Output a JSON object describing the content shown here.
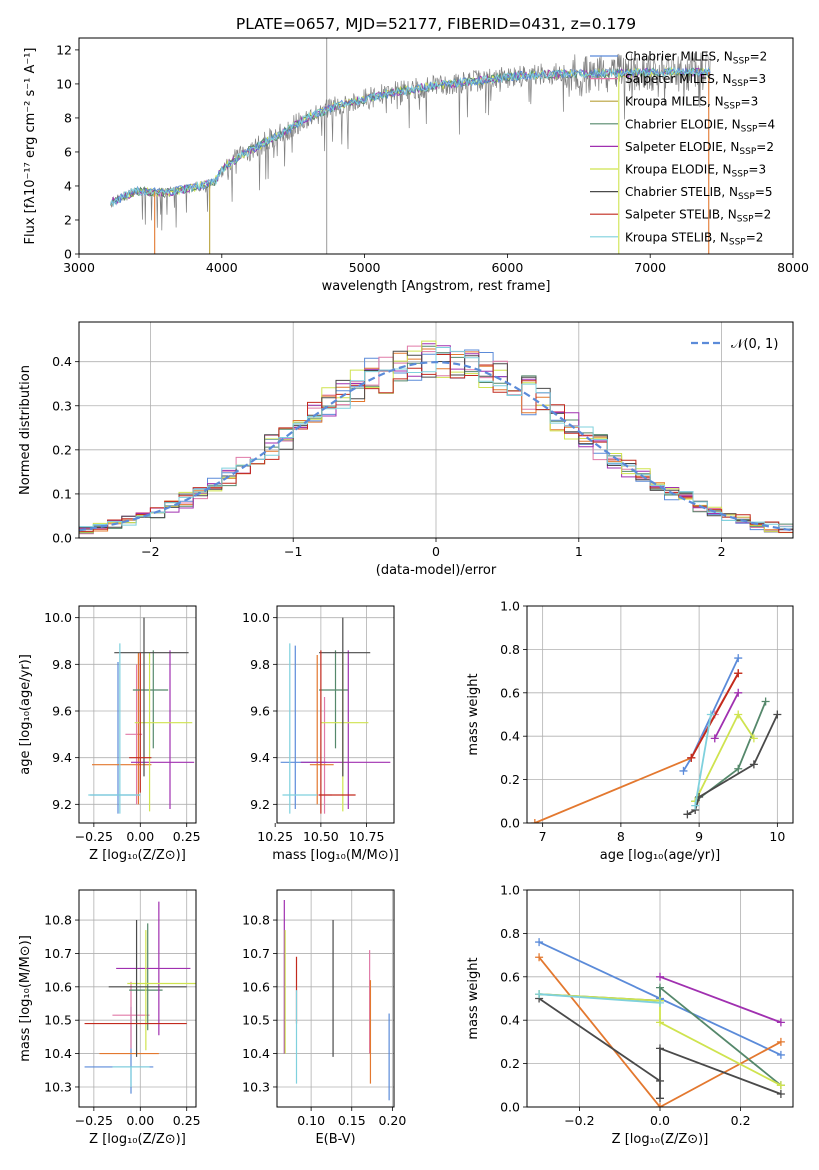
{
  "figure_title": "PLATE=0657, MJD=52177, FIBERID=0431, z=0.179",
  "colors": {
    "chabrier_miles": "#5b8bd9",
    "salpeter_miles": "#e07aa7",
    "kroupa_miles": "#b8a13a",
    "chabrier_elodie": "#55886b",
    "salpeter_elodie": "#a030b0",
    "kroupa_elodie": "#cfe34f",
    "chabrier_stelib": "#4a4a4a",
    "salpeter_stelib": "#c22a1e",
    "kroupa_stelib": "#7fd1dd",
    "orange_model": "#e3782f",
    "data_gray": "#808080",
    "grid": "#b0b0b0",
    "normal_curve": "#5b8bd9"
  },
  "chart_data": [
    {
      "id": "spectrum",
      "type": "line",
      "xlabel": "wavelength [Angstrom, rest frame]",
      "ylabel": "Flux [fλ10⁻¹⁷ erg cm⁻² s⁻¹ A⁻¹]",
      "xlim": [
        3000,
        8000
      ],
      "ylim": [
        0,
        12.7
      ],
      "xticks": [
        "3000",
        "4000",
        "5000",
        "6000",
        "7000",
        "8000"
      ],
      "yticks": [
        "0",
        "2",
        "4",
        "6",
        "8",
        "10",
        "12"
      ],
      "grid": false,
      "legend_position": "top-right",
      "legend": [
        {
          "text": "Chabrier MILES, N",
          "sub": "SSP",
          "tail": "=2",
          "color": "chabrier_miles"
        },
        {
          "text": "Salpeter MILES, N",
          "sub": "SSP",
          "tail": "=3",
          "color": "salpeter_miles"
        },
        {
          "text": "Kroupa MILES, N",
          "sub": "SSP",
          "tail": "=3",
          "color": "kroupa_miles"
        },
        {
          "text": "Chabrier ELODIE, N",
          "sub": "SSP",
          "tail": "=4",
          "color": "chabrier_elodie"
        },
        {
          "text": "Salpeter ELODIE, N",
          "sub": "SSP",
          "tail": "=2",
          "color": "salpeter_elodie"
        },
        {
          "text": "Kroupa ELODIE, N",
          "sub": "SSP",
          "tail": "=3",
          "color": "kroupa_elodie"
        },
        {
          "text": "Chabrier STELIB, N",
          "sub": "SSP",
          "tail": "=5",
          "color": "chabrier_stelib"
        },
        {
          "text": "Salpeter STELIB, N",
          "sub": "SSP",
          "tail": "=2",
          "color": "salpeter_stelib"
        },
        {
          "text": "Kroupa STELIB, N",
          "sub": "SSP",
          "tail": "=2",
          "color": "kroupa_stelib"
        }
      ],
      "continuum": [
        [
          3220,
          3.0
        ],
        [
          3400,
          3.7
        ],
        [
          3600,
          3.6
        ],
        [
          3800,
          3.9
        ],
        [
          3950,
          4.2
        ],
        [
          4000,
          5.0
        ],
        [
          4200,
          6.1
        ],
        [
          4400,
          7.0
        ],
        [
          4600,
          8.0
        ],
        [
          4800,
          8.7
        ],
        [
          5000,
          9.1
        ],
        [
          5200,
          9.5
        ],
        [
          5500,
          9.9
        ],
        [
          5800,
          10.2
        ],
        [
          6100,
          10.5
        ],
        [
          6400,
          10.6
        ],
        [
          6700,
          10.6
        ],
        [
          7000,
          10.7
        ],
        [
          7400,
          10.7
        ]
      ],
      "drops": [
        {
          "x": 3530,
          "color": "orange_model"
        },
        {
          "x": 3915,
          "color": "kroupa_miles"
        },
        {
          "x": 6780,
          "color": "kroupa_elodie"
        },
        {
          "x": 7410,
          "color": "orange_model"
        }
      ],
      "spikes": [
        4735
      ]
    },
    {
      "id": "residuals",
      "type": "histogram",
      "xlabel": "(data-model)/error",
      "ylabel": "Normed distribution",
      "xlim": [
        -2.5,
        2.5
      ],
      "ylim": [
        0,
        0.49
      ],
      "xticks": [
        -2,
        -1,
        0,
        1,
        2
      ],
      "yticks": [
        0.0,
        0.1,
        0.2,
        0.3,
        0.4
      ],
      "grid": true,
      "legend_position": "top-right",
      "legend_label": "𝒩(0, 1)",
      "bin_width": 0.1,
      "bin_start": -2.5
    },
    {
      "id": "age_vs_Z",
      "type": "errorbar",
      "xlabel": "Z [log₁₀(Z/Z⊙)]",
      "ylabel": "age  [log₁₀(age/yr)]",
      "xlim": [
        -0.33,
        0.3
      ],
      "ylim": [
        9.12,
        10.05
      ],
      "xticks": [
        "−0.25",
        "0.00",
        "0.25"
      ],
      "yticks": [
        "9.2",
        "9.4",
        "9.6",
        "9.8",
        "10.0"
      ],
      "grid": true,
      "points": [
        {
          "color": "chabrier_miles",
          "x": -0.12,
          "xerr": [
            0.15,
            0.12
          ],
          "y": 9.24,
          "yerr": [
            0.08,
            0.57
          ]
        },
        {
          "color": "salpeter_miles",
          "x": -0.02,
          "xerr": [
            0.06,
            0.03
          ],
          "y": 9.5,
          "yerr": [
            0.3,
            0.3
          ]
        },
        {
          "color": "orange_model",
          "x": -0.01,
          "xerr": [
            0.25,
            0.07
          ],
          "y": 9.37,
          "yerr": [
            0.17,
            0.48
          ]
        },
        {
          "color": "chabrier_elodie",
          "x": 0.07,
          "xerr": [
            0.11,
            0.08
          ],
          "y": 9.69,
          "yerr": [
            0.25,
            0.17
          ]
        },
        {
          "color": "salpeter_elodie",
          "x": 0.16,
          "xerr": [
            0.21,
            0.13
          ],
          "y": 9.38,
          "yerr": [
            0.2,
            0.48
          ]
        },
        {
          "color": "kroupa_elodie",
          "x": 0.05,
          "xerr": [
            0.08,
            0.23
          ],
          "y": 9.55,
          "yerr": [
            0.38,
            0.3
          ]
        },
        {
          "color": "chabrier_stelib",
          "x": 0.02,
          "xerr": [
            0.16,
            0.24
          ],
          "y": 9.85,
          "yerr": [
            0.53,
            0.15
          ]
        },
        {
          "color": "salpeter_stelib",
          "x": 0.0,
          "xerr": [
            0.06,
            0.06
          ],
          "y": 9.4,
          "yerr": [
            0.15,
            0.45
          ]
        },
        {
          "color": "kroupa_stelib",
          "x": -0.11,
          "xerr": [
            0.17,
            0.11
          ],
          "y": 9.24,
          "yerr": [
            0.08,
            0.65
          ]
        }
      ]
    },
    {
      "id": "age_vs_mass",
      "type": "errorbar",
      "xlabel": "mass [log₁₀(M/M⊙)]",
      "ylabel": "",
      "xlim": [
        10.26,
        10.9
      ],
      "ylim": [
        9.12,
        10.05
      ],
      "xticks": [
        "10.25",
        "10.50",
        "10.75"
      ],
      "yticks": [
        "9.2",
        "9.4",
        "9.6",
        "9.8",
        "10.0"
      ],
      "grid": true,
      "points": [
        {
          "color": "chabrier_miles",
          "x": 10.36,
          "xerr": [
            0.08,
            0.17
          ],
          "y": 9.38,
          "yerr": [
            0.2,
            0.5
          ]
        },
        {
          "color": "salpeter_miles",
          "x": 10.52,
          "xerr": [
            0.04,
            0.04
          ],
          "y": 9.24,
          "yerr": [
            0.08,
            0.42
          ]
        },
        {
          "color": "orange_model",
          "x": 10.48,
          "xerr": [
            0.04,
            0.09
          ],
          "y": 9.37,
          "yerr": [
            0.17,
            0.47
          ]
        },
        {
          "color": "chabrier_elodie",
          "x": 10.58,
          "xerr": [
            0.09,
            0.07
          ],
          "y": 9.69,
          "yerr": [
            0.25,
            0.17
          ]
        },
        {
          "color": "salpeter_elodie",
          "x": 10.65,
          "xerr": [
            0.26,
            0.23
          ],
          "y": 9.38,
          "yerr": [
            0.2,
            0.48
          ]
        },
        {
          "color": "kroupa_elodie",
          "x": 10.62,
          "xerr": [
            0.12,
            0.14
          ],
          "y": 9.55,
          "yerr": [
            0.38,
            0.3
          ]
        },
        {
          "color": "chabrier_stelib",
          "x": 10.62,
          "xerr": [
            0.13,
            0.15
          ],
          "y": 9.85,
          "yerr": [
            0.53,
            0.15
          ]
        },
        {
          "color": "salpeter_stelib",
          "x": 10.5,
          "xerr": [
            0.01,
            0.19
          ],
          "y": 9.24,
          "yerr": [
            0.08,
            0.62
          ]
        },
        {
          "color": "kroupa_stelib",
          "x": 10.33,
          "xerr": [
            0.04,
            0.15
          ],
          "y": 9.24,
          "yerr": [
            0.08,
            0.65
          ]
        }
      ]
    },
    {
      "id": "weight_vs_age",
      "type": "line",
      "xlabel": "age  [log₁₀(age/yr)]",
      "ylabel": "mass weight",
      "xlim": [
        6.8,
        10.2
      ],
      "ylim": [
        0,
        1.0
      ],
      "xticks": [
        "7",
        "8",
        "9",
        "10"
      ],
      "yticks": [
        "0.0",
        "0.2",
        "0.4",
        "0.6",
        "0.8",
        "1.0"
      ],
      "grid": true,
      "series": [
        {
          "color": "chabrier_miles",
          "x": [
            8.8,
            8.9,
            9.5
          ],
          "y": [
            0.24,
            0.3,
            0.76
          ]
        },
        {
          "color": "salpeter_miles",
          "x": [
            8.9,
            9.2,
            9.5
          ],
          "y": [
            0.3,
            0.5,
            0.69
          ]
        },
        {
          "color": "orange_model",
          "x": [
            6.9,
            8.9,
            9.5
          ],
          "y": [
            0.0,
            0.3,
            0.69
          ]
        },
        {
          "color": "chabrier_elodie",
          "x": [
            8.95,
            9.5,
            9.85
          ],
          "y": [
            0.1,
            0.25,
            0.56
          ]
        },
        {
          "color": "salpeter_elodie",
          "x": [
            9.2,
            9.5
          ],
          "y": [
            0.39,
            0.6
          ]
        },
        {
          "color": "kroupa_elodie",
          "x": [
            8.95,
            9.5,
            9.7
          ],
          "y": [
            0.1,
            0.5,
            0.39
          ]
        },
        {
          "color": "chabrier_stelib",
          "x": [
            8.85,
            8.95,
            9.0,
            9.7,
            10.0
          ],
          "y": [
            0.04,
            0.06,
            0.12,
            0.27,
            0.5
          ]
        },
        {
          "color": "salpeter_stelib",
          "x": [
            8.9,
            9.5
          ],
          "y": [
            0.3,
            0.69
          ]
        },
        {
          "color": "kroupa_stelib",
          "x": [
            8.95,
            9.15
          ],
          "y": [
            0.08,
            0.5
          ]
        }
      ]
    },
    {
      "id": "mass_vs_Z",
      "type": "errorbar",
      "xlabel": "Z [log₁₀(Z/Z⊙)]",
      "ylabel": "mass [log₁₀(M/M⊙)]",
      "xlim": [
        -0.33,
        0.3
      ],
      "ylim": [
        10.24,
        10.89
      ],
      "xticks": [
        "−0.25",
        "0.00",
        "0.25"
      ],
      "yticks": [
        "10.3",
        "10.4",
        "10.5",
        "10.6",
        "10.7",
        "10.8"
      ],
      "grid": true,
      "points": [
        {
          "color": "chabrier_miles",
          "x": -0.05,
          "xerr": [
            0.25,
            0.12
          ],
          "y": 10.36,
          "yerr": [
            0.08,
            0.18
          ]
        },
        {
          "color": "salpeter_miles",
          "x": -0.05,
          "xerr": [
            0.1,
            0.1
          ],
          "y": 10.515,
          "yerr": [
            0.1,
            0.1
          ]
        },
        {
          "color": "orange_model",
          "x": -0.05,
          "xerr": [
            0.17,
            0.15
          ],
          "y": 10.4,
          "yerr": [
            0.0,
            0.0
          ]
        },
        {
          "color": "chabrier_elodie",
          "x": 0.04,
          "xerr": [
            0.1,
            0.08
          ],
          "y": 10.59,
          "yerr": [
            0.12,
            0.2
          ]
        },
        {
          "color": "salpeter_elodie",
          "x": 0.1,
          "xerr": [
            0.23,
            0.17
          ],
          "y": 10.655,
          "yerr": [
            0.2,
            0.2
          ]
        },
        {
          "color": "kroupa_elodie",
          "x": 0.03,
          "xerr": [
            0.1,
            0.27
          ],
          "y": 10.61,
          "yerr": [
            0.2,
            0.16
          ]
        },
        {
          "color": "chabrier_stelib",
          "x": -0.02,
          "xerr": [
            0.15,
            0.27
          ],
          "y": 10.6,
          "yerr": [
            0.21,
            0.2
          ]
        },
        {
          "color": "salpeter_stelib",
          "x": -0.05,
          "xerr": [
            0.25,
            0.3
          ],
          "y": 10.49,
          "yerr": [
            0.0,
            0.0
          ]
        },
        {
          "color": "kroupa_stelib",
          "x": -0.05,
          "xerr": [
            0.1,
            0.1
          ],
          "y": 10.36,
          "yerr": [
            0.06,
            0.0
          ]
        }
      ]
    },
    {
      "id": "mass_vs_ebv",
      "type": "errorbar",
      "xlabel": "E(B-V)",
      "ylabel": "",
      "xlim": [
        0.058,
        0.202
      ],
      "ylim": [
        10.24,
        10.89
      ],
      "xticks": [
        "0.10",
        "0.15",
        "0.20"
      ],
      "yticks": [
        "10.3",
        "10.4",
        "10.5",
        "10.6",
        "10.7",
        "10.8"
      ],
      "grid": true,
      "points": [
        {
          "color": "salpeter_elodie",
          "x": 0.067,
          "y": 10.63,
          "yerr": [
            0.23,
            0.23
          ]
        },
        {
          "color": "kroupa_elodie",
          "x": 0.068,
          "y": 10.58,
          "yerr": [
            0.18,
            0.19
          ]
        },
        {
          "color": "salpeter_stelib",
          "x": 0.082,
          "y": 10.59,
          "yerr": [
            0.1,
            0.1
          ]
        },
        {
          "color": "kroupa_stelib",
          "x": 0.082,
          "y": 10.45,
          "yerr": [
            0.14,
            0.14
          ]
        },
        {
          "color": "chabrier_stelib",
          "x": 0.127,
          "y": 10.6,
          "yerr": [
            0.21,
            0.2
          ]
        },
        {
          "color": "salpeter_miles",
          "x": 0.172,
          "y": 10.6,
          "yerr": [
            0.2,
            0.11
          ]
        },
        {
          "color": "orange_model",
          "x": 0.173,
          "y": 10.46,
          "yerr": [
            0.15,
            0.16
          ]
        },
        {
          "color": "chabrier_miles",
          "x": 0.196,
          "y": 10.39,
          "yerr": [
            0.13,
            0.13
          ]
        }
      ]
    },
    {
      "id": "weight_vs_Z",
      "type": "line",
      "xlabel": "Z [log₁₀(Z/Z⊙)]",
      "ylabel": "mass weight",
      "xlim": [
        -0.33,
        0.33
      ],
      "ylim": [
        0,
        1.0
      ],
      "xticks": [
        "−0.2",
        "0.0",
        "0.2"
      ],
      "yticks": [
        "0.0",
        "0.2",
        "0.4",
        "0.6",
        "0.8",
        "1.0"
      ],
      "grid": true,
      "series": [
        {
          "color": "chabrier_miles",
          "x": [
            -0.3,
            0.0,
            0.3
          ],
          "y": [
            0.76,
            0.5,
            0.24
          ]
        },
        {
          "color": "orange_model",
          "x": [
            -0.3,
            0.0,
            0.3
          ],
          "y": [
            0.69,
            0.0,
            0.3
          ]
        },
        {
          "color": "chabrier_elodie",
          "x": [
            -0.3,
            0.0,
            0.0,
            0.3
          ],
          "y": [
            0.52,
            0.49,
            0.55,
            0.1
          ]
        },
        {
          "color": "salpeter_elodie",
          "x": [
            0.0,
            0.3
          ],
          "y": [
            0.6,
            0.39
          ]
        },
        {
          "color": "kroupa_elodie",
          "x": [
            -0.3,
            0.0,
            0.0,
            0.3
          ],
          "y": [
            0.52,
            0.49,
            0.39,
            0.1
          ]
        },
        {
          "color": "chabrier_stelib",
          "x": [
            -0.3,
            0.0,
            0.0,
            0.0,
            0.3
          ],
          "y": [
            0.5,
            0.12,
            0.04,
            0.27,
            0.06
          ]
        },
        {
          "color": "kroupa_stelib",
          "x": [
            -0.3,
            0.0
          ],
          "y": [
            0.52,
            0.48
          ]
        }
      ]
    }
  ]
}
